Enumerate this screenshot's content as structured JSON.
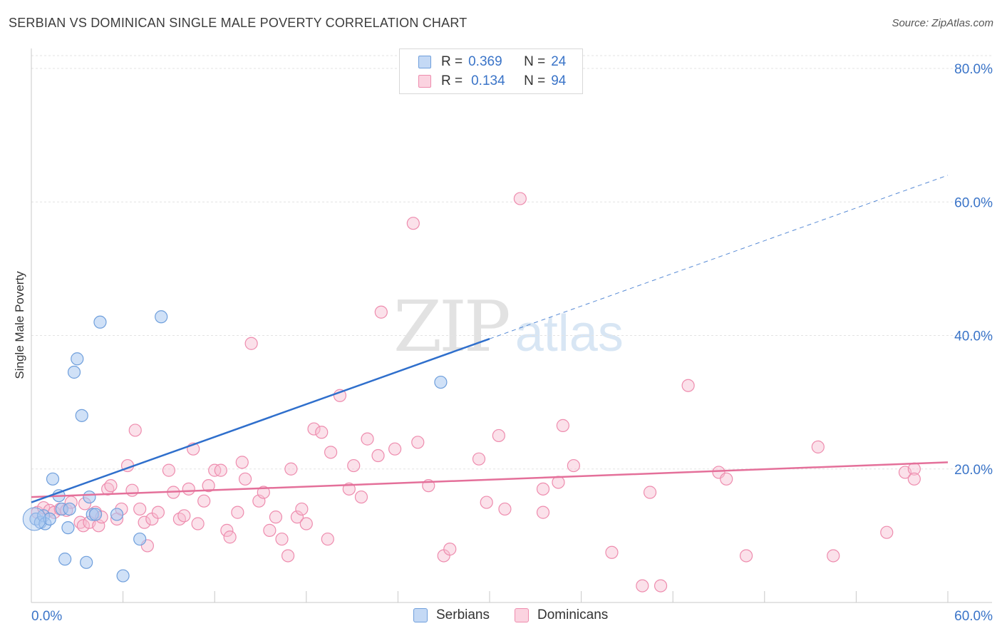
{
  "header": {
    "title": "SERBIAN VS DOMINICAN SINGLE MALE POVERTY CORRELATION CHART",
    "source": "Source: ZipAtlas.com"
  },
  "watermark": {
    "zip": "ZIP",
    "atlas": "atlas"
  },
  "legend_top": {
    "r_label": "R =",
    "n_label": "N =",
    "serbians": {
      "r": "0.369",
      "n": "24"
    },
    "dominicans": {
      "r": "0.134",
      "n": "94"
    }
  },
  "legend_bottom": {
    "serbians": "Serbians",
    "dominicans": "Dominicans"
  },
  "colors": {
    "serbians_fill": "#a9c8f0",
    "serbians_stroke": "#6f9fdc",
    "serbians_line": "#2f6fcc",
    "dominicans_fill": "#f6bcd0",
    "dominicans_stroke": "#ee8cae",
    "dominicans_line": "#e4709a",
    "axis_text": "#3a74c8",
    "grid": "#e3e3e3"
  },
  "chart_data": {
    "type": "scatter",
    "title": "SERBIAN VS DOMINICAN SINGLE MALE POVERTY CORRELATION CHART",
    "xlabel": "",
    "ylabel": "Single Male Poverty",
    "xlim": [
      0,
      60
    ],
    "ylim": [
      0,
      80
    ],
    "x_tick_labels": [
      "0.0%",
      "60.0%"
    ],
    "y_tick_labels": [
      "20.0%",
      "40.0%",
      "60.0%",
      "80.0%"
    ],
    "y_ticks": [
      20,
      40,
      60,
      80
    ],
    "x_minor_ticks": [
      0,
      6,
      12,
      18,
      24,
      30,
      36,
      42,
      48,
      54,
      60
    ],
    "grid": true,
    "legend_position": "top-center",
    "series": [
      {
        "name": "Serbians",
        "trend": {
          "x": [
            0,
            30
          ],
          "y": [
            15.0,
            39.5
          ],
          "extended_to_x": 60,
          "extended_y": 64.0
        },
        "points": [
          [
            0.3,
            12.5
          ],
          [
            0.6,
            12.0
          ],
          [
            0.8,
            13.0
          ],
          [
            0.9,
            11.8
          ],
          [
            1.2,
            12.5
          ],
          [
            1.4,
            18.5
          ],
          [
            1.8,
            16.0
          ],
          [
            2.0,
            14.0
          ],
          [
            2.2,
            6.5
          ],
          [
            2.4,
            11.2
          ],
          [
            2.8,
            34.5
          ],
          [
            3.0,
            36.5
          ],
          [
            3.3,
            28.0
          ],
          [
            3.6,
            6.0
          ],
          [
            3.8,
            15.8
          ],
          [
            4.0,
            13.2
          ],
          [
            4.2,
            13.2
          ],
          [
            4.5,
            42.0
          ],
          [
            6.0,
            4.0
          ],
          [
            5.6,
            13.2
          ],
          [
            7.1,
            9.5
          ],
          [
            8.5,
            42.8
          ],
          [
            26.8,
            33.0
          ],
          [
            2.5,
            14.0
          ]
        ]
      },
      {
        "name": "Dominicans",
        "trend": {
          "x": [
            0,
            60
          ],
          "y": [
            15.8,
            21.0
          ]
        },
        "points": [
          [
            0.4,
            13.5
          ],
          [
            0.8,
            14.2
          ],
          [
            1.2,
            13.8
          ],
          [
            1.5,
            13.5
          ],
          [
            1.9,
            14.0
          ],
          [
            2.3,
            13.8
          ],
          [
            2.6,
            15.0
          ],
          [
            3.2,
            12.0
          ],
          [
            3.4,
            11.5
          ],
          [
            3.5,
            14.8
          ],
          [
            3.8,
            12.0
          ],
          [
            4.2,
            13.5
          ],
          [
            4.4,
            11.5
          ],
          [
            4.6,
            12.8
          ],
          [
            5.0,
            17.0
          ],
          [
            5.2,
            17.5
          ],
          [
            5.6,
            12.5
          ],
          [
            5.9,
            14.0
          ],
          [
            6.3,
            20.5
          ],
          [
            6.6,
            16.8
          ],
          [
            6.8,
            25.8
          ],
          [
            7.1,
            14.0
          ],
          [
            7.4,
            12.0
          ],
          [
            7.6,
            8.5
          ],
          [
            7.9,
            12.5
          ],
          [
            8.3,
            13.5
          ],
          [
            9.0,
            19.8
          ],
          [
            9.3,
            16.5
          ],
          [
            9.7,
            12.5
          ],
          [
            10.0,
            13.0
          ],
          [
            10.3,
            17.0
          ],
          [
            10.6,
            23.0
          ],
          [
            10.9,
            11.8
          ],
          [
            11.3,
            15.2
          ],
          [
            11.6,
            17.5
          ],
          [
            12.0,
            19.8
          ],
          [
            12.4,
            19.8
          ],
          [
            12.8,
            10.8
          ],
          [
            13.0,
            9.8
          ],
          [
            13.5,
            13.5
          ],
          [
            13.8,
            21.0
          ],
          [
            14.0,
            18.5
          ],
          [
            14.4,
            38.8
          ],
          [
            14.9,
            15.2
          ],
          [
            15.2,
            16.5
          ],
          [
            15.6,
            10.8
          ],
          [
            16.0,
            12.8
          ],
          [
            16.4,
            9.5
          ],
          [
            16.8,
            7.0
          ],
          [
            17.0,
            20.0
          ],
          [
            17.4,
            12.8
          ],
          [
            17.7,
            14.0
          ],
          [
            18.0,
            11.8
          ],
          [
            18.5,
            26.0
          ],
          [
            19.0,
            25.5
          ],
          [
            19.4,
            9.5
          ],
          [
            19.6,
            22.5
          ],
          [
            20.2,
            31.0
          ],
          [
            20.8,
            17.0
          ],
          [
            21.1,
            20.5
          ],
          [
            21.6,
            15.8
          ],
          [
            22.0,
            24.5
          ],
          [
            22.7,
            22.0
          ],
          [
            22.9,
            43.5
          ],
          [
            23.8,
            23.0
          ],
          [
            25.0,
            56.8
          ],
          [
            25.3,
            24.0
          ],
          [
            26.0,
            17.5
          ],
          [
            27.0,
            7.0
          ],
          [
            27.4,
            8.0
          ],
          [
            29.3,
            21.5
          ],
          [
            29.8,
            15.0
          ],
          [
            30.6,
            25.0
          ],
          [
            31.0,
            14.0
          ],
          [
            32.0,
            60.5
          ],
          [
            33.5,
            13.5
          ],
          [
            33.5,
            17.0
          ],
          [
            34.5,
            18.0
          ],
          [
            34.8,
            26.5
          ],
          [
            35.5,
            20.5
          ],
          [
            38.0,
            7.5
          ],
          [
            40.0,
            2.5
          ],
          [
            40.5,
            16.5
          ],
          [
            41.2,
            2.5
          ],
          [
            43.0,
            32.5
          ],
          [
            45.0,
            19.5
          ],
          [
            45.5,
            18.5
          ],
          [
            46.8,
            7.0
          ],
          [
            51.5,
            23.3
          ],
          [
            52.5,
            7.0
          ],
          [
            56.0,
            10.5
          ],
          [
            57.2,
            19.5
          ],
          [
            57.8,
            20.0
          ],
          [
            57.8,
            18.5
          ]
        ]
      }
    ]
  }
}
